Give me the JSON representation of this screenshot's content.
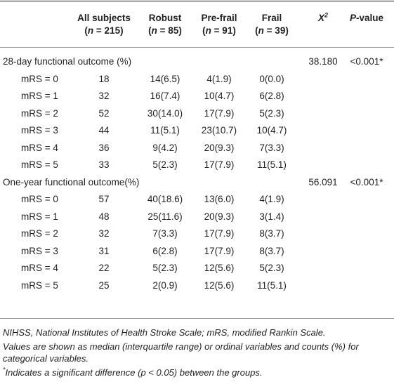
{
  "header": {
    "col_all_line1": "All subjects",
    "col_all_line2_n": "n",
    "col_all_line2_rest": " = 215)",
    "col_robust_line1": "Robust",
    "col_robust_line2_rest": " = 85)",
    "col_prefrail_line1": "Pre-frail",
    "col_prefrail_line2_rest": " = 91)",
    "col_frail_line1": "Frail",
    "col_frail_line2_rest": " = 39)",
    "open_paren": "(",
    "col_x2_base": "X",
    "col_x2_sup": "2",
    "col_p_italic": "P",
    "col_p_rest": "-value"
  },
  "sections": [
    {
      "title": "28-day functional outcome (%)",
      "x2": "38.180",
      "p": "<0.001*",
      "rows": [
        {
          "label": "mRS = 0",
          "all": "18",
          "robust": "14(6.5)",
          "prefrail": "4(1.9)",
          "frail": "0(0.0)"
        },
        {
          "label": "mRS = 1",
          "all": "32",
          "robust": "16(7.4)",
          "prefrail": "10(4.7)",
          "frail": "6(2.8)"
        },
        {
          "label": "mRS = 2",
          "all": "52",
          "robust": "30(14.0)",
          "prefrail": "17(7.9)",
          "frail": "5(2.3)"
        },
        {
          "label": "mRS = 3",
          "all": "44",
          "robust": "11(5.1)",
          "prefrail": "23(10.7)",
          "frail": "10(4.7)"
        },
        {
          "label": "mRS = 4",
          "all": "36",
          "robust": "9(4.2)",
          "prefrail": "20(9.3)",
          "frail": "7(3.3)"
        },
        {
          "label": "mRS = 5",
          "all": "33",
          "robust": "5(2.3)",
          "prefrail": "17(7.9)",
          "frail": "11(5.1)"
        }
      ]
    },
    {
      "title": "One-year functional outcome(%)",
      "x2": "56.091",
      "p": "<0.001*",
      "rows": [
        {
          "label": "mRS = 0",
          "all": "57",
          "robust": "40(18.6)",
          "prefrail": "13(6.0)",
          "frail": "4(1.9)"
        },
        {
          "label": "mRS = 1",
          "all": "48",
          "robust": "25(11.6)",
          "prefrail": "20(9.3)",
          "frail": "3(1.4)"
        },
        {
          "label": "mRS = 2",
          "all": "32",
          "robust": "7(3.3)",
          "prefrail": "17(7.9)",
          "frail": "8(3.7)"
        },
        {
          "label": "mRS = 3",
          "all": "31",
          "robust": "6(2.8)",
          "prefrail": "17(7.9)",
          "frail": "8(3.7)"
        },
        {
          "label": "mRS = 4",
          "all": "22",
          "robust": "5(2.3)",
          "prefrail": "12(5.6)",
          "frail": "5(2.3)"
        },
        {
          "label": "mRS = 5",
          "all": "25",
          "robust": "2(0.9)",
          "prefrail": "12(5.6)",
          "frail": "11(5.1)"
        }
      ]
    }
  ],
  "footnotes": {
    "abbrev": "NIHSS, National Institutes of Health Stroke Scale; mRS, modified Rankin Scale.",
    "values": "Values are shown as median (interquartile range) or ordinal variables and counts (%) for categorical variables.",
    "star": "*",
    "sig": "Indicates a significant difference (p < 0.05) between the groups."
  }
}
